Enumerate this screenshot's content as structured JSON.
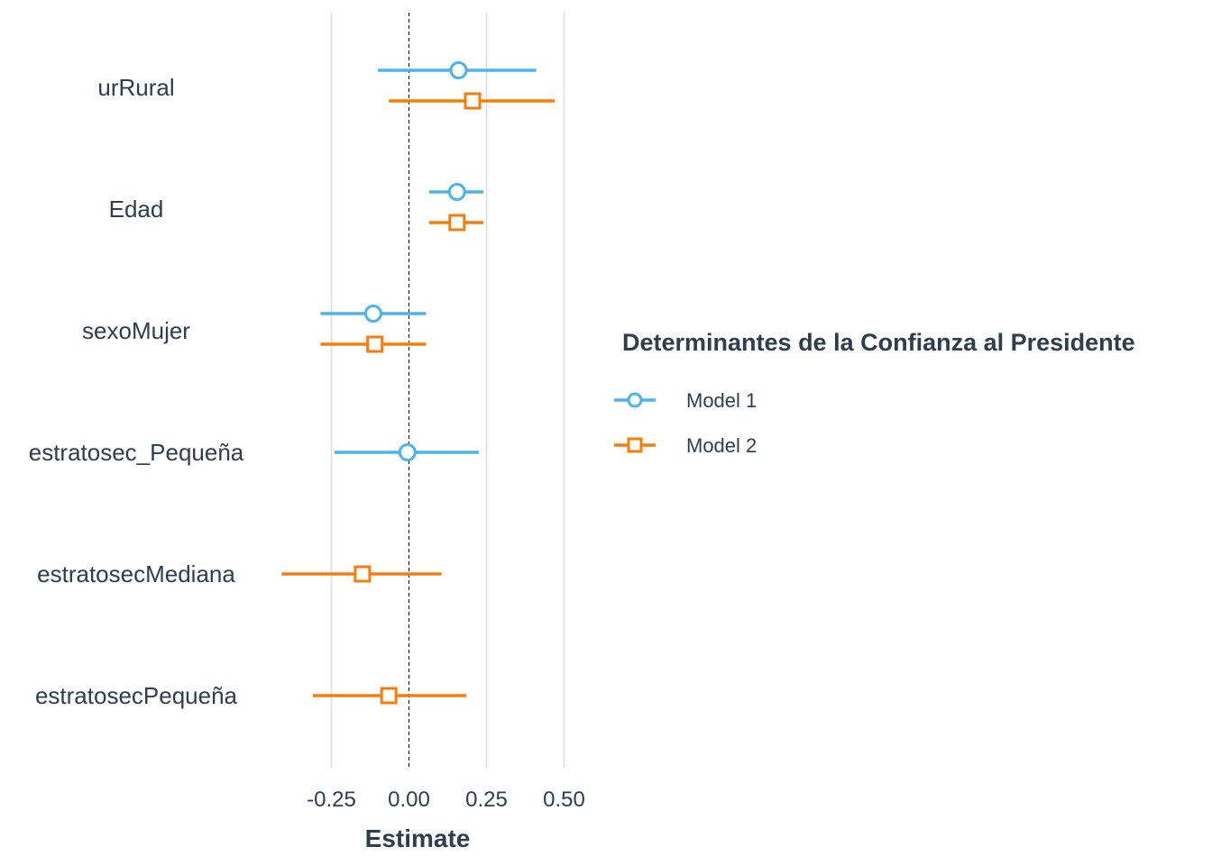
{
  "chart_data": {
    "type": "scatter",
    "subtype": "coefficient-plot",
    "xlabel": "Estimate",
    "ylabel": "",
    "xlim": [
      -0.5,
      0.55
    ],
    "xticks": [
      -0.25,
      0.0,
      0.25,
      0.5
    ],
    "xtick_labels": [
      "-0.25",
      "0.00",
      "0.25",
      "0.50"
    ],
    "reference_line": 0.0,
    "grid": "vertical major",
    "categories": [
      "urRural",
      "Edad",
      "sexoMujer",
      "estratosec_Pequeña",
      "estratosecMediana",
      "estratosecPequeña"
    ],
    "legend": {
      "title": "Determinantes de la Confianza al Presidente",
      "position": "right"
    },
    "series": [
      {
        "name": "Model 1",
        "color": "#4db3ec",
        "marker": "circle",
        "points": [
          {
            "term": "urRural",
            "estimate": 0.16,
            "low": -0.1,
            "high": 0.41
          },
          {
            "term": "Edad",
            "estimate": 0.155,
            "low": 0.065,
            "high": 0.24
          },
          {
            "term": "sexoMujer",
            "estimate": -0.115,
            "low": -0.285,
            "high": 0.055
          },
          {
            "term": "estratosec_Pequeña",
            "estimate": -0.005,
            "low": -0.24,
            "high": 0.225
          }
        ]
      },
      {
        "name": "Model 2",
        "color": "#f37e0c",
        "marker": "square",
        "points": [
          {
            "term": "urRural",
            "estimate": 0.205,
            "low": -0.065,
            "high": 0.47
          },
          {
            "term": "Edad",
            "estimate": 0.155,
            "low": 0.065,
            "high": 0.24
          },
          {
            "term": "sexoMujer",
            "estimate": -0.11,
            "low": -0.285,
            "high": 0.055
          },
          {
            "term": "estratosecMediana",
            "estimate": -0.15,
            "low": -0.41,
            "high": 0.105
          },
          {
            "term": "estratosecPequeña",
            "estimate": -0.065,
            "low": -0.31,
            "high": 0.185
          }
        ]
      }
    ]
  }
}
